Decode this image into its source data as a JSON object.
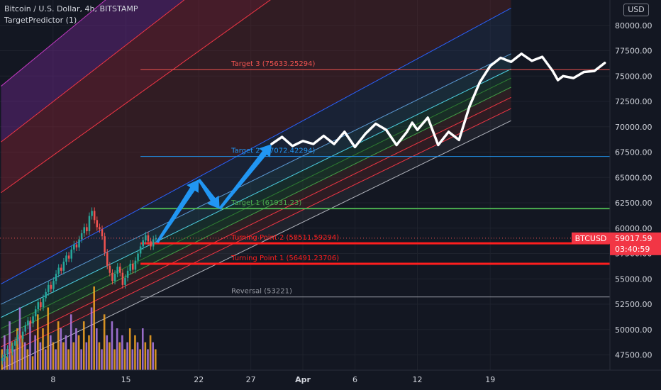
{
  "header": {
    "symbol_line": "Bitcoin / U.S. Dollar, 4h, BITSTAMP",
    "indicator_line": "TargetPredictor (1)"
  },
  "currency_button": "USD",
  "chart_data": {
    "type": "candlestick",
    "symbol": "BTCUSD",
    "ylim": [
      46000,
      82500
    ],
    "y_ticks": [
      80000,
      77500,
      75000,
      72500,
      70000,
      67500,
      65000,
      62500,
      60000,
      57500,
      55000,
      52500,
      50000,
      47500
    ],
    "y_tick_labels": [
      "80000.00",
      "77500.00",
      "75000.00",
      "72500.00",
      "70000.00",
      "67500.00",
      "65000.00",
      "62500.00",
      "60000.00",
      "57500.00",
      "55000.00",
      "52500.00",
      "50000.00",
      "47500.00"
    ],
    "x_ticks": [
      {
        "label": "8",
        "day": 8
      },
      {
        "label": "15",
        "day": 15
      },
      {
        "label": "22",
        "day": 22
      },
      {
        "label": "27",
        "day": 27
      },
      {
        "label": "Apr",
        "day": 32
      },
      {
        "label": "6",
        "day": 37
      },
      {
        "label": "12",
        "day": 43
      },
      {
        "label": "19",
        "day": 50
      }
    ],
    "levels": [
      {
        "name": "Target 3",
        "label": "Target 3 (75633.25294)",
        "value": 75633.25,
        "color": "#f05350",
        "width": 1
      },
      {
        "name": "Target 2",
        "label": "Target 2 (67072.42294)",
        "value": 67072.42,
        "color": "#2196f3",
        "width": 1
      },
      {
        "name": "Target 1",
        "label": "Target 1 (61931.23)",
        "value": 61931.23,
        "color": "#4caf50",
        "width": 2
      },
      {
        "name": "Turning Point 2",
        "label": "Turning Point 2 (58511.59294)",
        "value": 58511.59,
        "color": "#ff1e1e",
        "width": 3
      },
      {
        "name": "Turning Point 1",
        "label": "Turning Point 1 (56491.23706)",
        "value": 56491.24,
        "color": "#ff1e1e",
        "width": 3
      },
      {
        "name": "Reversal",
        "label": "Reversal (53221)",
        "value": 53221,
        "color": "#9598a1",
        "width": 1
      }
    ],
    "channel": {
      "start_day": 3,
      "end_day": 52,
      "lines": [
        {
          "color": "#c039c0",
          "start": 74000,
          "end": 115500
        },
        {
          "color": "#f23645",
          "start": 68500,
          "end": 107500
        },
        {
          "color": "#f23645",
          "start": 63500,
          "end": 99500
        },
        {
          "color": "#2962ff",
          "start": 54500,
          "end": 81700
        },
        {
          "color": "#5b9bd5",
          "start": 52500,
          "end": 77200
        },
        {
          "color": "#4dd0e1",
          "start": 51200,
          "end": 75700
        },
        {
          "color": "#2e7d32",
          "start": 50100,
          "end": 74800
        },
        {
          "color": "#43a047",
          "start": 49200,
          "end": 73900
        },
        {
          "color": "#f23645",
          "start": 48300,
          "end": 72900
        },
        {
          "color": "#f23645",
          "start": 47300,
          "end": 71800
        },
        {
          "color": "#b2b5be",
          "start": 46100,
          "end": 70600
        }
      ],
      "bands": [
        {
          "from": 0,
          "to": 1,
          "fill": "rgba(110,40,140,0.45)"
        },
        {
          "from": 1,
          "to": 2,
          "fill": "rgba(130,35,50,0.45)"
        },
        {
          "from": 2,
          "to": 3,
          "fill": "rgba(120,40,40,0.30)"
        },
        {
          "from": 3,
          "to": 4,
          "fill": "rgba(40,60,100,0.30)"
        },
        {
          "from": 4,
          "to": 5,
          "fill": "rgba(40,90,110,0.30)"
        },
        {
          "from": 5,
          "to": 6,
          "fill": "rgba(30,90,60,0.32)"
        },
        {
          "from": 6,
          "to": 7,
          "fill": "rgba(40,100,50,0.30)"
        },
        {
          "from": 7,
          "to": 8,
          "fill": "rgba(100,50,40,0.30)"
        },
        {
          "from": 8,
          "to": 9,
          "fill": "rgba(110,40,40,0.30)"
        },
        {
          "from": 9,
          "to": 10,
          "fill": "rgba(60,60,70,0.30)"
        }
      ]
    },
    "candles_close": [
      47200,
      47600,
      48100,
      47800,
      48400,
      48900,
      49500,
      49100,
      49800,
      50400,
      50900,
      50600,
      51300,
      52000,
      52700,
      52200,
      53100,
      53700,
      54400,
      54000,
      54800,
      55500,
      56100,
      55800,
      56700,
      57300,
      57000,
      57900,
      58400,
      58100,
      58900,
      59500,
      60100,
      59700,
      61200,
      61700,
      60800,
      60100,
      59900,
      59200,
      57600,
      56300,
      55600,
      54800,
      55500,
      56200,
      55600,
      54400,
      55100,
      55800,
      56500,
      55900,
      56800,
      57500,
      58200,
      58800,
      59300,
      58700,
      58200,
      58900,
      59017
    ],
    "candles_start_day": 3,
    "candles_end_day": 18,
    "current_price": {
      "ticker": "BTCUSD",
      "price": "59017.59",
      "countdown": "03:40:59",
      "value": 59017.59
    },
    "projection_arrows": [
      {
        "from": {
          "day": 18,
          "value": 58600
        },
        "to": {
          "day": 22,
          "value": 64800
        }
      },
      {
        "from": {
          "day": 22,
          "value": 64800
        },
        "to": {
          "day": 24,
          "value": 61900
        }
      },
      {
        "from": {
          "day": 24,
          "value": 61900
        },
        "to": {
          "day": 29,
          "value": 68300
        }
      }
    ],
    "projected_path": [
      {
        "day": 29,
        "value": 68300
      },
      {
        "day": 30,
        "value": 69000
      },
      {
        "day": 31,
        "value": 68100
      },
      {
        "day": 32,
        "value": 68600
      },
      {
        "day": 33,
        "value": 68300
      },
      {
        "day": 34,
        "value": 69100
      },
      {
        "day": 35,
        "value": 68300
      },
      {
        "day": 36,
        "value": 69500
      },
      {
        "day": 37,
        "value": 68000
      },
      {
        "day": 38,
        "value": 69300
      },
      {
        "day": 39,
        "value": 70300
      },
      {
        "day": 40,
        "value": 69700
      },
      {
        "day": 41,
        "value": 68200
      },
      {
        "day": 42,
        "value": 69500
      },
      {
        "day": 42.5,
        "value": 70400
      },
      {
        "day": 43,
        "value": 69700
      },
      {
        "day": 44,
        "value": 70900
      },
      {
        "day": 45,
        "value": 68200
      },
      {
        "day": 46,
        "value": 69500
      },
      {
        "day": 47,
        "value": 68700
      },
      {
        "day": 48,
        "value": 72000
      },
      {
        "day": 49,
        "value": 74400
      },
      {
        "day": 50,
        "value": 76000
      },
      {
        "day": 51,
        "value": 76800
      },
      {
        "day": 52,
        "value": 76400
      },
      {
        "day": 53,
        "value": 77200
      },
      {
        "day": 54,
        "value": 76500
      },
      {
        "day": 55,
        "value": 76900
      },
      {
        "day": 56,
        "value": 75500
      },
      {
        "day": 56.5,
        "value": 74600
      },
      {
        "day": 57,
        "value": 75000
      },
      {
        "day": 58,
        "value": 74800
      },
      {
        "day": 59,
        "value": 75400
      },
      {
        "day": 60,
        "value": 75500
      },
      {
        "day": 61,
        "value": 76300
      }
    ],
    "volume": [
      3,
      5,
      2,
      7,
      4,
      3,
      6,
      9,
      5,
      4,
      3,
      7,
      2,
      5,
      8,
      4,
      6,
      3,
      9,
      5,
      4,
      3,
      7,
      6,
      4,
      5,
      3,
      8,
      4,
      6,
      5,
      3,
      7,
      4,
      5,
      9,
      12,
      6,
      4,
      3,
      8,
      5,
      4,
      7,
      3,
      6,
      4,
      5,
      3,
      4,
      6,
      3,
      5,
      4,
      3,
      6,
      4,
      3,
      5,
      4,
      3
    ],
    "volume_colors": [
      "#f6a623",
      "#b07be8",
      "#f6a623",
      "#b07be8"
    ]
  }
}
